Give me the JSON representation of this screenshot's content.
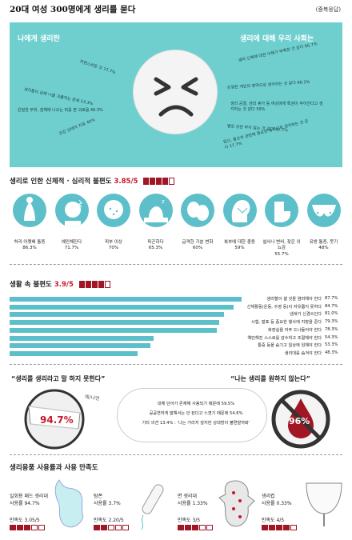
{
  "header": {
    "title": "20대 여성 300명에게 생리를 묻다",
    "credit": "(중복응답)"
  },
  "hero": {
    "left_label": "나에게 생리란",
    "right_label": "생리에 대해 우리 사회는",
    "left_items": [
      "자연스러운 것 77.7%",
      "여성이라서 겪어야 하는 불편함 52.3%",
      "생리통이 심해 나를 괴롭히는 존재 53.3%",
      "은밀한 부위, 침해에 나오는 피를 본 괴로움 46.3%",
      "건강 상태의 지표 40%"
    ],
    "right_items": [
      "생리 신체에 대한 이해가 부족한 것 같다 66.7%",
      "은밀한 개인의 영역으로 생각하는 것 같다 66.3%",
      "생리 공결, 생리 휴가 등 여성에게 특권이 주어진다고 생각하는 것 같다 59%",
      "별로 상관 하지 않는 것 같다 42.7%",
      "임신, 출산과 관련해 중요한 능력으로 생각하는 것 같다 17.7%"
    ]
  },
  "physical": {
    "title": "생리로 인한 신체적 · 심리적 불편도",
    "score": "3.85/5",
    "filled": 4,
    "items": [
      {
        "label": "허리·아랫배 통증",
        "value": "86.3%",
        "icon": "back-pain-icon"
      },
      {
        "label": "예민해진다",
        "value": "71.7%",
        "icon": "irritable-icon"
      },
      {
        "label": "피부 이상",
        "value": "70%",
        "icon": "skin-icon"
      },
      {
        "label": "피곤하다",
        "value": "65.3%",
        "icon": "tired-icon"
      },
      {
        "label": "급격한 기분 변화",
        "value": "60%",
        "icon": "mood-masks-icon"
      },
      {
        "label": "복부에 대한 충동",
        "value": "59%",
        "icon": "head-icon"
      },
      {
        "label": "설사나 변비, 잦은 이뇨감",
        "value": "55.7%",
        "icon": "toilet-icon"
      },
      {
        "label": "유방 통증, 붓기",
        "value": "48%",
        "icon": "breast-icon"
      }
    ]
  },
  "life": {
    "title": "생활 속 불편도",
    "score": "3.9/5",
    "filled": 4,
    "bars": [
      {
        "label": "생리혈이 샐 것을 염려해야 한다",
        "value": 87.7,
        "pct": "87.7%"
      },
      {
        "label": "신체활동(운동, 수영 등)이 자유롭지 못하다",
        "value": 84.7,
        "pct": "84.7%"
      },
      {
        "label": "냄새가 신경쓰인다",
        "value": 81.0,
        "pct": "81.0%"
      },
      {
        "label": "시험, 발표 등 중요한 행사에 지장을 준다",
        "value": 79.3,
        "pct": "79.3%"
      },
      {
        "label": "화장실을 자주 드나들어야 한다",
        "value": 78.3,
        "pct": "78.3%"
      },
      {
        "label": "예민해진 스스로를 감수하고 조절해야 한다",
        "value": 54.3,
        "pct": "54.3%"
      },
      {
        "label": "통증 등을 숨기고 일상에 임해야 한다",
        "value": 53.3,
        "pct": "53.3%"
      },
      {
        "label": "생리대를 숨겨야 한다",
        "value": 48.3,
        "pct": "48.3%"
      }
    ]
  },
  "speech": {
    "left_title": "“생리를 생리라고 말 하지 못한다”",
    "left_value": "94.7%",
    "left_tag": "예/나연",
    "right_title": "“나는 생리를 원하지 않는다”",
    "right_value": "96%",
    "reasons": [
      "대체 단어가 존재해 사용되기 때문에 59.5%",
      "공공연하게 말해서는 안 된다고 느꼈기 때문에 54.6%",
      "기타 의견 13.4% : ‘나는 거리지 않지만 상대방이 불편할까봐’"
    ]
  },
  "products": {
    "title": "생리용품 사용률과 사용 만족도",
    "items": [
      {
        "name": "일회용 패드 생리대",
        "use": "사용률 94.7%",
        "sat": "만족도 3.05/5",
        "filled": 3,
        "icon": "pad-icon"
      },
      {
        "name": "탐폰",
        "use": "사용률 3.7%",
        "sat": "만족도 2.20/5",
        "filled": 2,
        "icon": "tampon-icon"
      },
      {
        "name": "면 생리대",
        "use": "사용률 1.33%",
        "sat": "만족도 3/5",
        "filled": 3,
        "icon": "cloth-pad-icon"
      },
      {
        "name": "생리컵",
        "use": "사용률 0.33%",
        "sat": "만족도 4/5",
        "filled": 4,
        "icon": "cup-icon"
      }
    ]
  },
  "colors": {
    "teal": "#5dbfc9",
    "hero": "#6fcfcf",
    "red": "#c41a2e",
    "dark_red": "#a01624"
  }
}
